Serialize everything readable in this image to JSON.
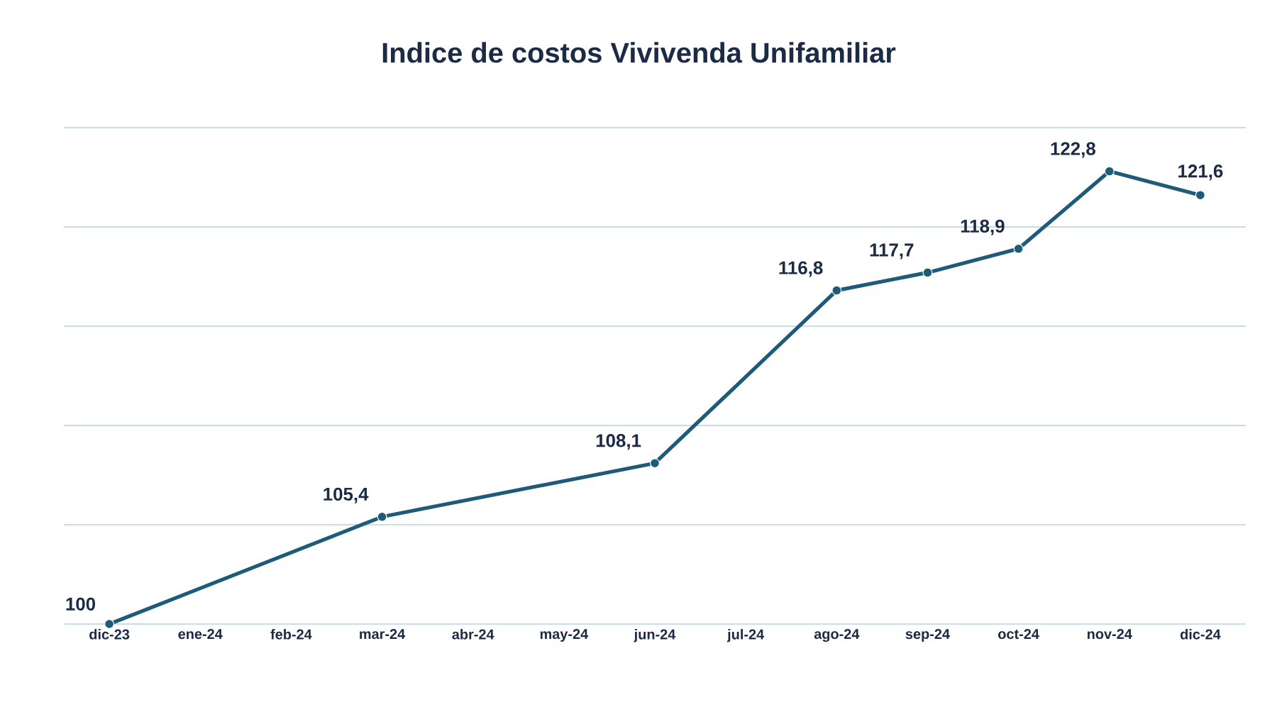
{
  "chart_data": {
    "type": "line",
    "title": "Indice de costos Vivivenda Unifamiliar",
    "categories": [
      "dic-23",
      "ene-24",
      "feb-24",
      "mar-24",
      "abr-24",
      "may-24",
      "jun-24",
      "jul-24",
      "ago-24",
      "sep-24",
      "oct-24",
      "nov-24",
      "dic-24"
    ],
    "values": [
      100,
      null,
      null,
      105.4,
      null,
      null,
      108.1,
      null,
      116.8,
      117.7,
      118.9,
      122.8,
      121.6
    ],
    "value_labels": [
      "100",
      null,
      null,
      "105,4",
      null,
      null,
      "108,1",
      null,
      "116,8",
      "117,7",
      "118,9",
      "122,8",
      "121,6"
    ],
    "color": "#1d5b78",
    "marker": "circle",
    "line_style": "solid",
    "ylim": [
      100,
      125
    ],
    "yticks": [
      {
        "value": 100,
        "label": null
      },
      {
        "value": 105,
        "label": null
      },
      {
        "value": 110,
        "label": null
      },
      {
        "value": 115,
        "label": null
      },
      {
        "value": 120,
        "label": null
      },
      {
        "value": 125,
        "label": null
      }
    ],
    "grid": "y",
    "tick_labels": "x"
  }
}
